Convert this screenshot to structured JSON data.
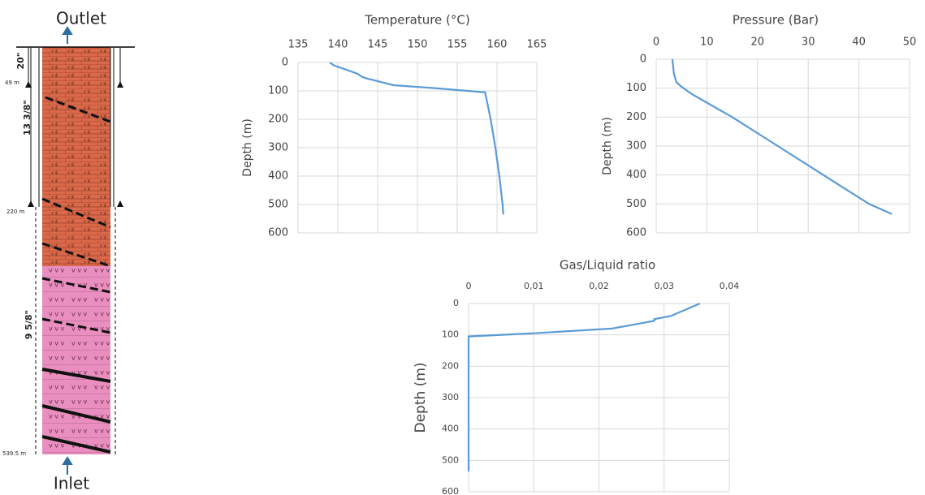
{
  "well": {
    "outlet": "Outlet",
    "inlet": "Inlet",
    "casings": [
      "20\"",
      "13 3/8\"",
      "9 5/8\""
    ],
    "depths": [
      "49 m",
      "220 m",
      "539.5 m"
    ]
  },
  "chart_data": [
    {
      "type": "line",
      "title": "Temperature (°C)",
      "ylabel": "Depth (m)",
      "color": "#5b9bd5",
      "grid": true,
      "x": [
        139,
        139.5,
        142.5,
        143,
        143.5,
        147,
        152,
        158.5,
        159.2,
        159.8,
        160.3,
        160.7,
        160.8
      ],
      "y": [
        0,
        10,
        40,
        50,
        55,
        80,
        90,
        105,
        200,
        300,
        400,
        500,
        535
      ],
      "xlim": [
        135,
        165
      ],
      "xticks": [
        135,
        140,
        145,
        150,
        155,
        160,
        165
      ],
      "ylim": [
        0,
        600
      ],
      "yticks": [
        0,
        100,
        200,
        300,
        400,
        500,
        600
      ]
    },
    {
      "type": "line",
      "title": "Pressure (Bar)",
      "ylabel": "Depth (m)",
      "color": "#5b9bd5",
      "grid": true,
      "x": [
        3.2,
        3.5,
        4,
        5,
        7,
        10,
        15,
        24,
        33,
        42,
        46.5
      ],
      "y": [
        0,
        50,
        80,
        95,
        120,
        150,
        200,
        300,
        400,
        500,
        535
      ],
      "xlim": [
        0,
        50
      ],
      "xticks": [
        0,
        10,
        20,
        30,
        40,
        50
      ],
      "ylim": [
        0,
        600
      ],
      "yticks": [
        0,
        100,
        200,
        300,
        400,
        500,
        600
      ]
    },
    {
      "type": "line",
      "title": "Gas/Liquid ratio",
      "ylabel": "Depth (m)",
      "color": "#5b9bd5",
      "grid": true,
      "x": [
        0.0355,
        0.031,
        0.0285,
        0.0285,
        0.022,
        0.01,
        0,
        0,
        0
      ],
      "y": [
        0,
        40,
        50,
        55,
        80,
        95,
        105,
        200,
        535
      ],
      "xlim": [
        0,
        0.04
      ],
      "xticks": [
        0,
        {
          "value": 0.01,
          "label": "0,01"
        },
        {
          "value": 0.02,
          "label": "0,02"
        },
        {
          "value": 0.03,
          "label": "0,03"
        },
        {
          "value": 0.04,
          "label": "0,04"
        }
      ],
      "ylim": [
        0,
        600
      ],
      "yticks": [
        0,
        100,
        200,
        300,
        400,
        500,
        600
      ]
    }
  ]
}
